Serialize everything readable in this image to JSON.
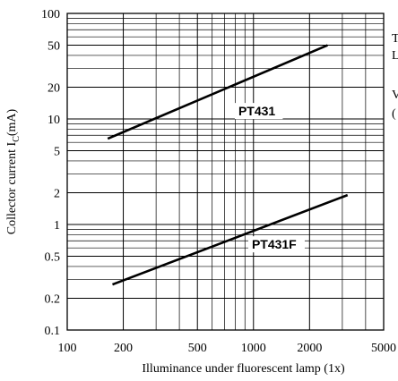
{
  "chart_data": {
    "type": "line",
    "x_scale": "log",
    "y_scale": "log",
    "xlim": [
      100,
      5000
    ],
    "ylim": [
      0.1,
      100
    ],
    "xlabel": "Illuminance under fluorescent lamp  (1x)",
    "ylabel_main": "Collector current I",
    "ylabel_sub": "C",
    "ylabel_unit": "(mA)",
    "x_ticks": [
      {
        "value": 100,
        "label": "100"
      },
      {
        "value": 200,
        "label": "200"
      },
      {
        "value": 500,
        "label": "500"
      },
      {
        "value": 1000,
        "label": "1000"
      },
      {
        "value": 2000,
        "label": "2000"
      },
      {
        "value": 5000,
        "label": "5000"
      }
    ],
    "y_ticks": [
      {
        "value": 0.1,
        "label": "0.1"
      },
      {
        "value": 0.2,
        "label": "0.2"
      },
      {
        "value": 0.5,
        "label": "0.5"
      },
      {
        "value": 1,
        "label": "1"
      },
      {
        "value": 2,
        "label": "2"
      },
      {
        "value": 5,
        "label": "5"
      },
      {
        "value": 10,
        "label": "10"
      },
      {
        "value": 20,
        "label": "20"
      },
      {
        "value": 50,
        "label": "50"
      },
      {
        "value": 100,
        "label": "100"
      }
    ],
    "grid": true,
    "series": [
      {
        "name": "PT431",
        "x": [
          165,
          2500
        ],
        "y": [
          6.5,
          50
        ],
        "label_at": {
          "x": 830,
          "y": 11
        }
      },
      {
        "name": "PT431F",
        "x": [
          175,
          3200
        ],
        "y": [
          0.27,
          1.9
        ],
        "label_at": {
          "x": 980,
          "y": 0.6
        }
      }
    ]
  },
  "side_text": {
    "line1": "T",
    "line2": "L",
    "line3": "V",
    "line4": "("
  }
}
